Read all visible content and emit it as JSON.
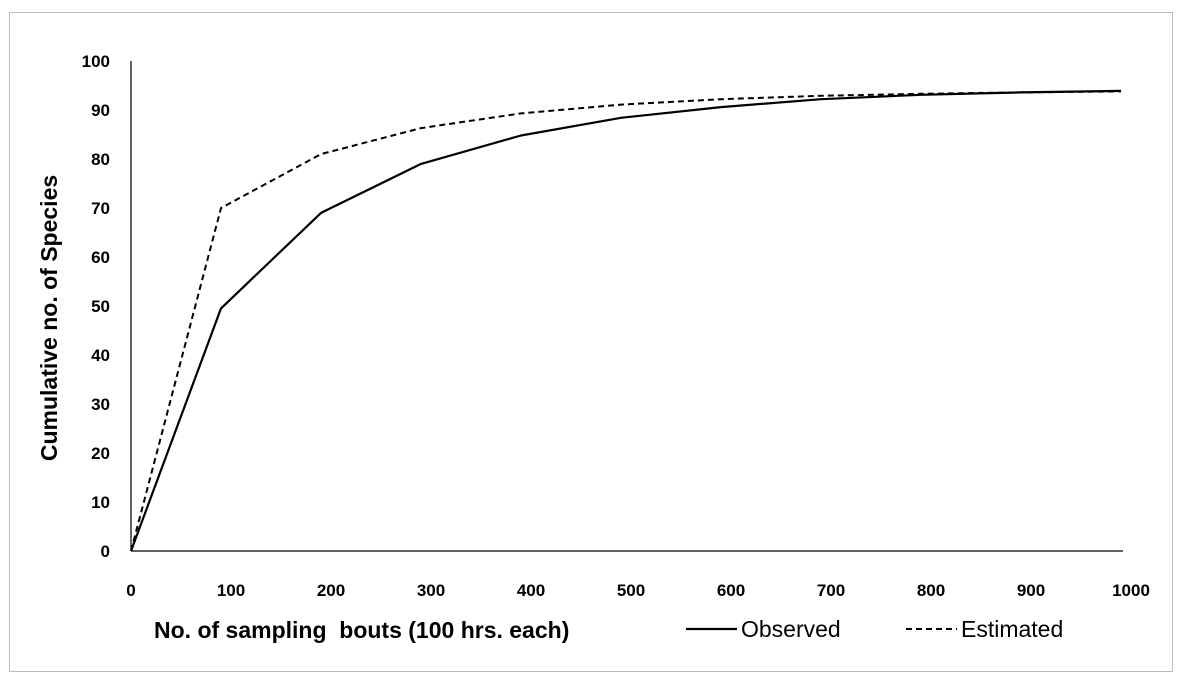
{
  "chart_data": {
    "type": "line",
    "title": "",
    "xlabel": "No. of sampling  bouts (100 hrs. each)",
    "ylabel": "Cumulative no. of Species",
    "xlim": [
      0,
      1000
    ],
    "ylim": [
      0,
      100
    ],
    "x_ticks": [
      "0",
      "100",
      "200",
      "300",
      "400",
      "500",
      "600",
      "700",
      "800",
      "900",
      "1000"
    ],
    "y_ticks": [
      "0",
      "10",
      "20",
      "30",
      "40",
      "50",
      "60",
      "70",
      "80",
      "90",
      "100"
    ],
    "grid": false,
    "legend": "bottom-right, beside x-axis title",
    "series": [
      {
        "name": "Observed",
        "style": "solid",
        "color": "#000000",
        "x": [
          0,
          90,
          190,
          290,
          390,
          490,
          590,
          690,
          790,
          890,
          990
        ],
        "y": [
          0,
          49.5,
          69,
          79,
          84.8,
          88.4,
          90.6,
          92.2,
          93.1,
          93.6,
          93.9
        ]
      },
      {
        "name": "Estimated",
        "style": "dashed",
        "color": "#000000",
        "x": [
          0,
          90,
          190,
          290,
          390,
          490,
          590,
          690,
          790,
          890,
          990
        ],
        "y": [
          0,
          70,
          81,
          86.3,
          89.3,
          91.1,
          92.2,
          92.9,
          93.3,
          93.6,
          93.8
        ]
      }
    ]
  }
}
